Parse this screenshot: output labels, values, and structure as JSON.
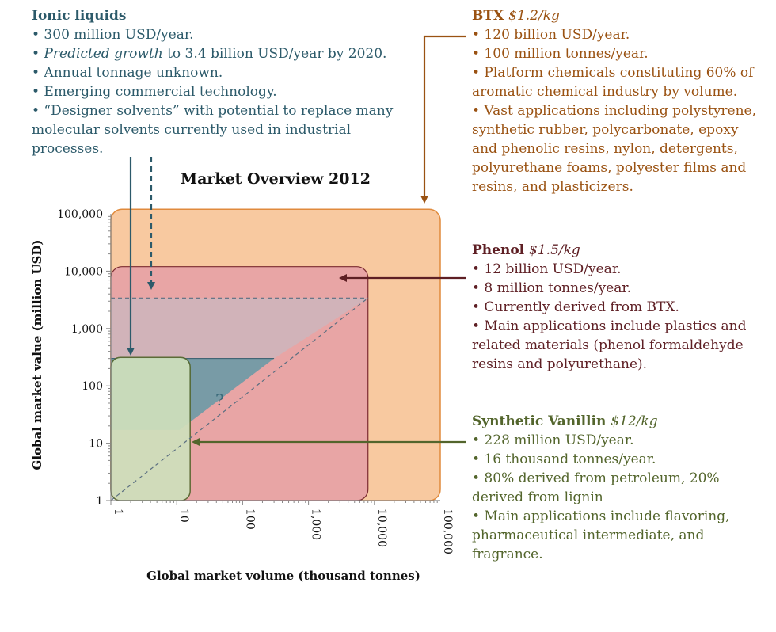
{
  "colors": {
    "ionic": "#2c5a6a",
    "btx": "#9a5212",
    "phenol": "#5e1f24",
    "vanillin": "#53652c"
  },
  "ionic": {
    "title": "Ionic liquids",
    "bullets": [
      "• 300 million USD/year.",
      "• Annual tonnage unknown.",
      "• Emerging commercial technology.",
      "• “Designer solvents” with potential to replace many",
      "molecular solvents currently used in industrial",
      "processes."
    ],
    "growth_italic": "Predicted growth",
    "growth_rest": " to 3.4 billion USD/year by 2020."
  },
  "btx": {
    "title": "BTX",
    "price": "$1.2/kg",
    "bullets": [
      "• 120 billion USD/year.",
      "• 100 million tonnes/year.",
      "• Platform chemicals constituting 60% of",
      "aromatic chemical industry by volume.",
      "• Vast applications including polystyrene,",
      "synthetic rubber, polycarbonate, epoxy",
      "and phenolic resins, nylon, detergents,",
      "polyurethane foams, polyester films and",
      "resins, and plasticizers."
    ]
  },
  "phenol": {
    "title": "Phenol",
    "price": "$1.5/kg",
    "bullets": [
      "• 12 billion USD/year.",
      "• 8 million tonnes/year.",
      "• Currently derived from BTX.",
      "• Main applications include plastics and",
      "related materials (phenol formaldehyde",
      "resins and polyurethane)."
    ]
  },
  "vanillin": {
    "title": "Synthetic Vanillin",
    "price": "$12/kg",
    "bullets": [
      "• 228 million USD/year.",
      "• 16 thousand tonnes/year.",
      "• 80% derived from petroleum, 20%",
      "derived from lignin",
      "• Main applications include flavoring,",
      "pharmaceutical intermediate, and",
      "fragrance."
    ]
  },
  "chart_data": {
    "type": "area",
    "title": "Market Overview 2012",
    "xlabel": "Global market volume (thousand tonnes)",
    "ylabel": "Global market value (million USD)",
    "x_scale": "log",
    "y_scale": "log",
    "xlim": [
      1,
      100000
    ],
    "ylim": [
      1,
      100000
    ],
    "x_ticks": [
      "1",
      "10",
      "100",
      "1,000",
      "10,000",
      "100,000"
    ],
    "y_ticks": [
      "1",
      "10",
      "100",
      "1,000",
      "10,000",
      "100,000"
    ],
    "question_mark": "?",
    "series": [
      {
        "name": "BTX",
        "volume": 100000,
        "value": 120000,
        "color": "#f8c9a0",
        "stroke": "#e08a3c"
      },
      {
        "name": "Phenol",
        "volume": 8000,
        "value": 12000,
        "color": "#e8a5a5",
        "stroke": "#7a2a30"
      },
      {
        "name": "Ionic liquids",
        "volume": null,
        "value": 300,
        "forecast_value": 3400,
        "color": "#6c9aa6",
        "stroke": "#2c5a6a"
      },
      {
        "name": "Synthetic Vanillin",
        "volume": 16,
        "value": 228,
        "color": "#cfe0bc",
        "stroke": "#53652c"
      }
    ]
  }
}
